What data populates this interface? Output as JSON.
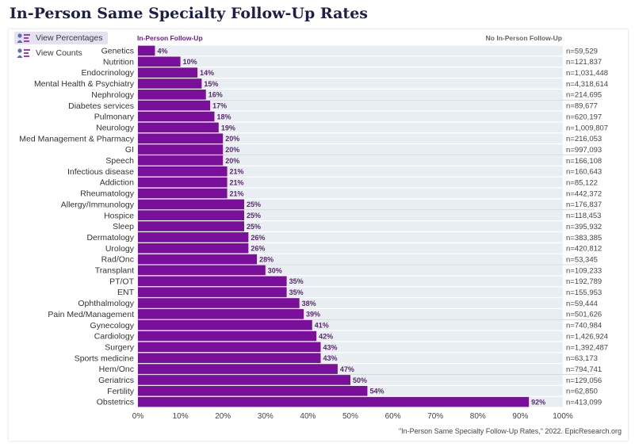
{
  "page": {
    "title": "In-Person Same Specialty Follow-Up Rates",
    "source": "\"In-Person Same Specialty Follow-Up Rates,\" 2022. EpicResearch.org"
  },
  "controls": {
    "percentages_label": "View Percentages",
    "counts_label": "View Counts",
    "active": "percentages",
    "icon": "people-chart-icon"
  },
  "colors": {
    "bar": "#7a0f9b",
    "remainder": "#e8eef2",
    "title": "#1e1e4a"
  },
  "chart_data": {
    "type": "bar",
    "orientation": "horizontal",
    "stacked_to_100": true,
    "legend": [
      "In-Person Follow-Up",
      "No In-Person Follow-Up"
    ],
    "legend_placement": "top",
    "xlim": [
      0,
      100
    ],
    "xticks": [
      "0%",
      "10%",
      "20%",
      "30%",
      "40%",
      "50%",
      "60%",
      "70%",
      "80%",
      "90%",
      "100%"
    ],
    "categories": [
      "Genetics",
      "Nutrition",
      "Endocrinology",
      "Mental Health & Psychiatry",
      "Nephrology",
      "Diabetes services",
      "Pulmonary",
      "Neurology",
      "Med Management & Pharmacy",
      "GI",
      "Speech",
      "Infectious disease",
      "Addiction",
      "Rheumatology",
      "Allergy/Immunology",
      "Hospice",
      "Sleep",
      "Dermatology",
      "Urology",
      "Rad/Onc",
      "Transplant",
      "PT/OT",
      "ENT",
      "Ophthalmology",
      "Pain Med/Management",
      "Gynecology",
      "Cardiology",
      "Surgery",
      "Sports medicine",
      "Hem/Onc",
      "Geriatrics",
      "Fertility",
      "Obstetrics"
    ],
    "values": [
      4,
      10,
      14,
      15,
      16,
      17,
      18,
      19,
      20,
      20,
      20,
      21,
      21,
      21,
      25,
      25,
      25,
      26,
      26,
      28,
      30,
      35,
      35,
      38,
      39,
      41,
      42,
      43,
      43,
      47,
      50,
      54,
      92
    ],
    "value_labels": [
      "4%",
      "10%",
      "14%",
      "15%",
      "16%",
      "17%",
      "18%",
      "19%",
      "20%",
      "20%",
      "20%",
      "21%",
      "21%",
      "21%",
      "25%",
      "25%",
      "25%",
      "26%",
      "26%",
      "28%",
      "30%",
      "35%",
      "35%",
      "38%",
      "39%",
      "41%",
      "42%",
      "43%",
      "43%",
      "47%",
      "50%",
      "54%",
      "92%"
    ],
    "counts": [
      "n=59,529",
      "n=121,837",
      "n=1,031,448",
      "n=4,318,614",
      "n=214,695",
      "n=89,677",
      "n=620,197",
      "n=1,009,807",
      "n=216,053",
      "n=997,093",
      "n=166,108",
      "n=160,643",
      "n=85,122",
      "n=442,372",
      "n=176,837",
      "n=118,453",
      "n=395,932",
      "n=383,385",
      "n=420,812",
      "n=53,345",
      "n=109,233",
      "n=192,789",
      "n=155,953",
      "n=59,444",
      "n=501,626",
      "n=740,984",
      "n=1,426,924",
      "n=1,392,487",
      "n=63,173",
      "n=794,741",
      "n=129,056",
      "n=62,850",
      "n=413,099"
    ],
    "group_size": 5
  }
}
